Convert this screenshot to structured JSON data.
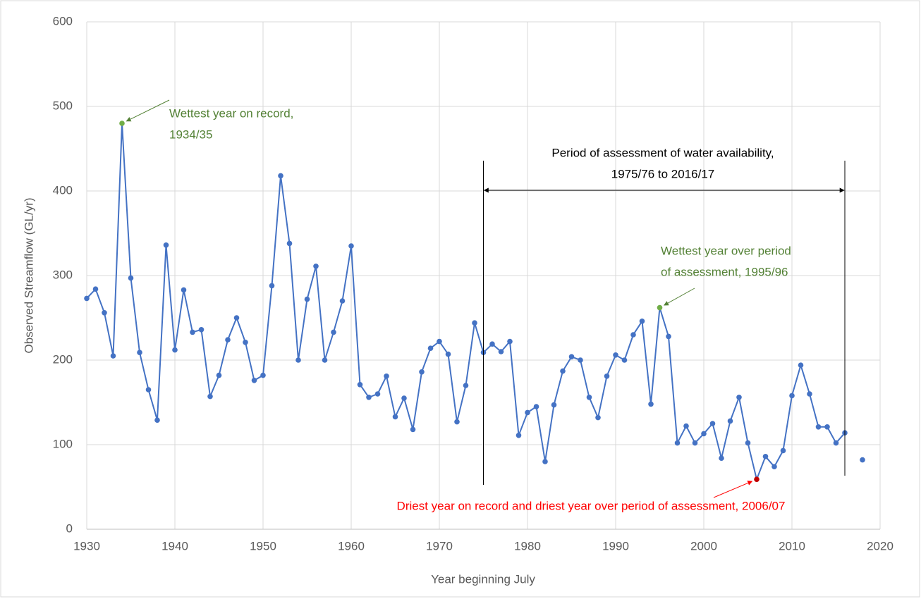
{
  "chart_data": {
    "type": "line",
    "x_label": "Year beginning July",
    "y_label": "Observed Streamflow (GL/yr)",
    "xlim": [
      1930,
      2020
    ],
    "xticks": [
      1930,
      1940,
      1950,
      1960,
      1970,
      1980,
      1990,
      2000,
      2010,
      2020
    ],
    "ylim": [
      0,
      600
    ],
    "yticks": [
      0,
      100,
      200,
      300,
      400,
      500,
      600
    ],
    "grid": true,
    "x": [
      1930,
      1931,
      1932,
      1933,
      1934,
      1935,
      1936,
      1937,
      1938,
      1939,
      1940,
      1941,
      1942,
      1943,
      1944,
      1945,
      1946,
      1947,
      1948,
      1949,
      1950,
      1951,
      1952,
      1953,
      1954,
      1955,
      1956,
      1957,
      1958,
      1959,
      1960,
      1961,
      1962,
      1963,
      1964,
      1965,
      1966,
      1967,
      1968,
      1969,
      1970,
      1971,
      1972,
      1973,
      1974,
      1975,
      1976,
      1977,
      1978,
      1979,
      1980,
      1981,
      1982,
      1983,
      1984,
      1985,
      1986,
      1987,
      1988,
      1989,
      1990,
      1991,
      1992,
      1993,
      1994,
      1995,
      1996,
      1997,
      1998,
      1999,
      2000,
      2001,
      2002,
      2003,
      2004,
      2005,
      2006,
      2007,
      2008,
      2009,
      2010,
      2011,
      2012,
      2013,
      2014,
      2015,
      2016,
      2017,
      2018
    ],
    "series": [
      {
        "name": "Observed Streamflow",
        "color": "#4472c4",
        "values": [
          273,
          284,
          256,
          205,
          480,
          297,
          209,
          165,
          129,
          336,
          212,
          283,
          233,
          236,
          157,
          182,
          224,
          250,
          221,
          176,
          182,
          288,
          418,
          338,
          200,
          272,
          311,
          200,
          233,
          270,
          335,
          171,
          156,
          160,
          181,
          133,
          155,
          118,
          186,
          214,
          222,
          207,
          127,
          170,
          244,
          209,
          219,
          210,
          222,
          111,
          138,
          145,
          80,
          147,
          187,
          204,
          200,
          156,
          132,
          181,
          206,
          200,
          230,
          246,
          148,
          262,
          228,
          102,
          122,
          102,
          113,
          125,
          84,
          128,
          156,
          102,
          59,
          86,
          74,
          93,
          158,
          194,
          160,
          121,
          121,
          102,
          114,
          null,
          82
        ]
      }
    ],
    "annotations": [
      {
        "text": [
          "Wettest year on record,",
          "1934/35"
        ],
        "color": "#70ad47",
        "x": 1934,
        "y": 480
      },
      {
        "text": [
          "Wettest year over period",
          "of assessment, 1995/96"
        ],
        "color": "#70ad47",
        "x": 1995,
        "y": 262
      },
      {
        "text": [
          "Driest year on record and driest year over period of assessment, 2006/07"
        ],
        "color": "#ff0000",
        "x": 2006,
        "y": 59
      }
    ],
    "period": {
      "text": [
        "Period of assessment of water availability,",
        "1975/76 to 2016/17"
      ],
      "start": 1975,
      "end": 2016
    }
  }
}
